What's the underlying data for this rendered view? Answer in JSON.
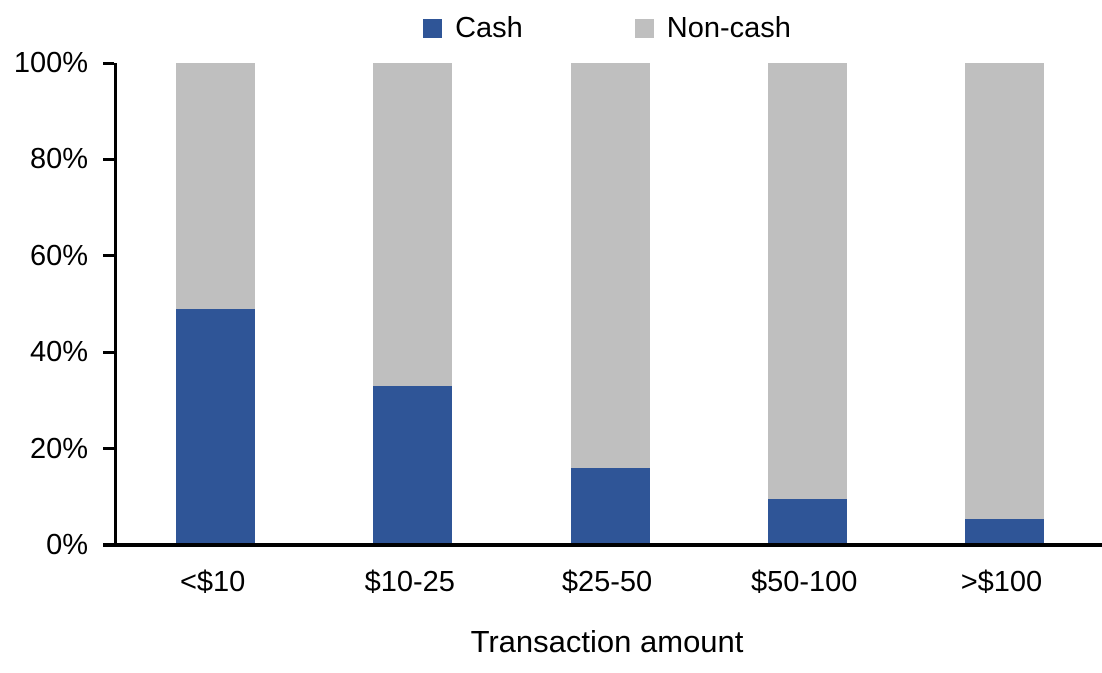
{
  "chart_data": {
    "type": "bar",
    "stacked": true,
    "stacked_percent": true,
    "title": "",
    "xlabel": "Transaction amount",
    "ylabel": "",
    "categories": [
      "<$10",
      "$10-25",
      "$25-50",
      "$50-100",
      ">$100"
    ],
    "series": [
      {
        "name": "Cash",
        "color": "#2F5597",
        "values": [
          49,
          33,
          16,
          9.5,
          5.5
        ]
      },
      {
        "name": "Non-cash",
        "color": "#BFBFBF",
        "values": [
          51,
          67,
          84,
          90.5,
          94.5
        ]
      }
    ],
    "ylim": [
      0,
      100
    ],
    "ytick_step": 20,
    "ytick_labels": [
      "0%",
      "20%",
      "40%",
      "60%",
      "80%",
      "100%"
    ],
    "legend_position": "top",
    "grid": false,
    "axis_color": "#000000"
  }
}
